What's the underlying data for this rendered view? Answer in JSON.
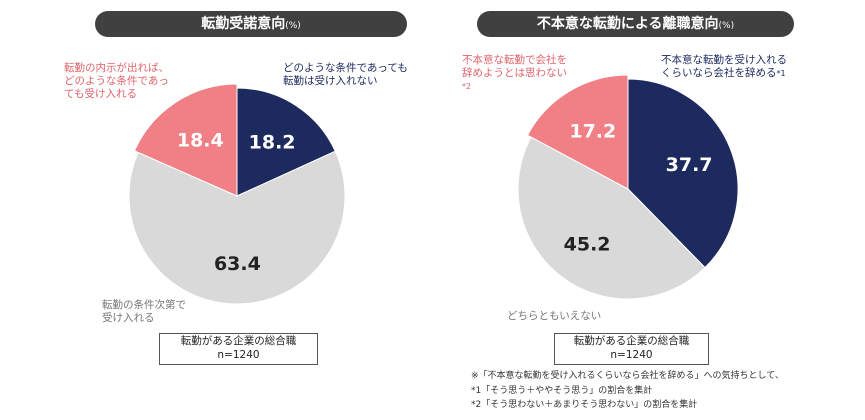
{
  "chart_data": [
    {
      "type": "pie",
      "title": "転勤受諾意向",
      "title_suffix": "(%)",
      "sample_label": "転勤がある企業の総合職",
      "sample_n": "n=1240",
      "slices": [
        {
          "label": "どのような条件であっても転勤は受け入れない",
          "label_lines": [
            "どのような条件であっても",
            "転勤は受け入れない"
          ],
          "value": 18.2,
          "display": "18.2",
          "color": "#1c2a5e",
          "label_color": "#ffffff"
        },
        {
          "label": "転勤の条件次第で受け入れる",
          "label_lines": [
            "転勤の条件次第で",
            "受け入れる"
          ],
          "value": 63.4,
          "display": "63.4",
          "color": "#d9d9d9",
          "label_color": "#222222"
        },
        {
          "label": "転勤の内示が出れば、どのような条件であっても受け入れる",
          "label_lines": [
            "転勤の内示が出れば、",
            "どのような条件であっ",
            "ても受け入れる"
          ],
          "value": 18.4,
          "display": "18.4",
          "color": "#f07f86",
          "label_color": "#ffffff"
        }
      ]
    },
    {
      "type": "pie",
      "title": "不本意な転勤による離職意向",
      "title_suffix": "(%)",
      "sample_label": "転勤がある企業の総合職",
      "sample_n": "n=1240",
      "slices": [
        {
          "label": "不本意な転勤を受け入れるくらいなら会社を辞める",
          "label_lines": [
            "不本意な転勤を受け入れる",
            "くらいなら会社を辞める"
          ],
          "note": "*1",
          "value": 37.7,
          "display": "37.7",
          "color": "#1c2a5e",
          "label_color": "#ffffff"
        },
        {
          "label": "どちらともいえない",
          "label_lines": [
            "どちらともいえない"
          ],
          "value": 45.2,
          "display": "45.2",
          "color": "#d9d9d9",
          "label_color": "#222222"
        },
        {
          "label": "不本意な転勤で会社を辞めようとは思わない",
          "label_lines": [
            "不本意な転勤で会社を",
            "辞めようとは思わない"
          ],
          "note": "*2",
          "value": 17.2,
          "display": "17.2",
          "color": "#f07f86",
          "label_color": "#ffffff"
        }
      ],
      "footnotes": [
        "※「不本意な転勤を受け入れるくらいなら会社を辞める」への気持ちとして、",
        "*1「そう思う＋ややそう思う」の割合を集計",
        "*2「そう思わない＋あまりそう思わない」の割合を集計"
      ]
    }
  ]
}
